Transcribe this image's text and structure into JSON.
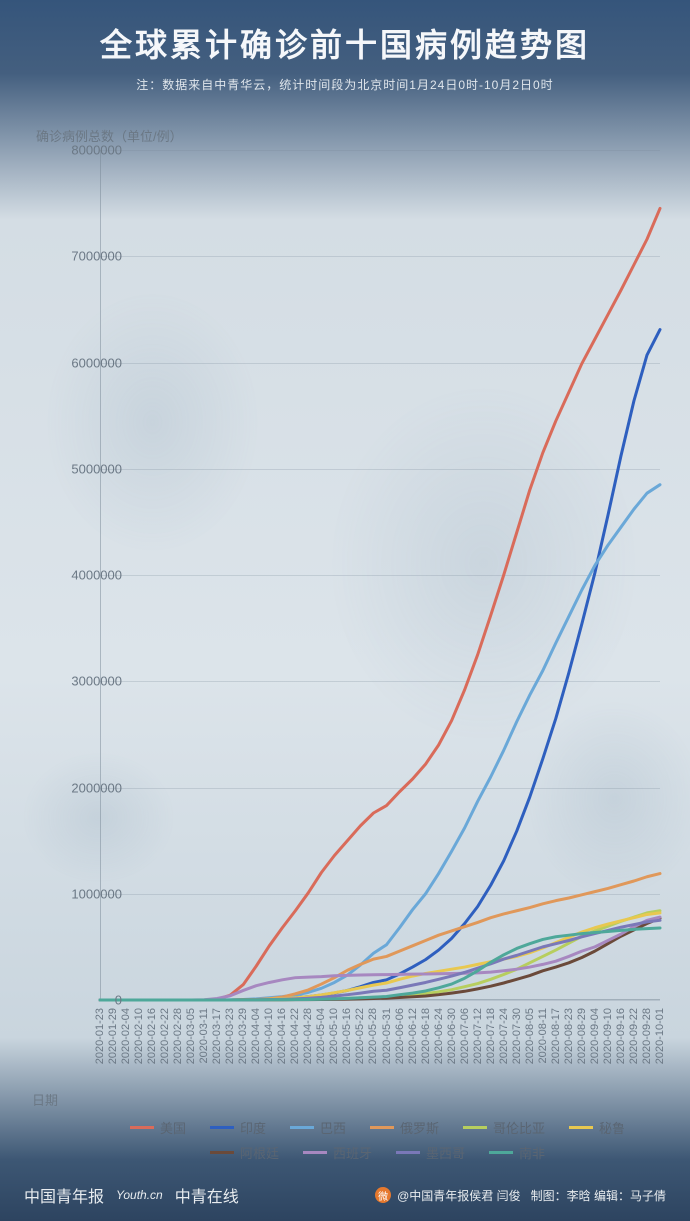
{
  "header": {
    "title": "全球累计确诊前十国病例趋势图",
    "subtitle": "注：数据来自中青华云，统计时间段为北京时间1月24日0时-10月2日0时"
  },
  "chart": {
    "type": "line",
    "ylabel": "确诊病例总数（单位/例）",
    "xlabel": "日期",
    "ylim": [
      0,
      8000000
    ],
    "ytick_step": 1000000,
    "yticks": [
      "0",
      "1000000",
      "2000000",
      "3000000",
      "4000000",
      "5000000",
      "6000000",
      "7000000",
      "8000000"
    ],
    "xticks": [
      "2020-01-23",
      "2020-01-29",
      "2020-02-04",
      "2020-02-10",
      "2020-02-16",
      "2020-02-22",
      "2020-02-28",
      "2020-03-05",
      "2020-03-11",
      "2020-03-17",
      "2020-03-23",
      "2020-03-29",
      "2020-04-04",
      "2020-04-10",
      "2020-04-16",
      "2020-04-22",
      "2020-04-28",
      "2020-05-04",
      "2020-05-10",
      "2020-05-16",
      "2020-05-22",
      "2020-05-28",
      "2020-05-31",
      "2020-06-06",
      "2020-06-12",
      "2020-06-18",
      "2020-06-24",
      "2020-06-30",
      "2020-07-06",
      "2020-07-12",
      "2020-07-18",
      "2020-07-24",
      "2020-07-30",
      "2020-08-05",
      "2020-08-11",
      "2020-08-17",
      "2020-08-23",
      "2020-08-29",
      "2020-09-04",
      "2020-09-10",
      "2020-09-16",
      "2020-09-22",
      "2020-09-28",
      "2020-10-01"
    ],
    "line_width": 3,
    "background_color": "#d9e1e8",
    "grid_color": "rgba(120,135,150,0.25)",
    "label_color": "#6b7885",
    "label_fontsize": 13,
    "series": [
      {
        "name": "美国",
        "color": "#d96b5a",
        "values": [
          0,
          0,
          0,
          0,
          0,
          0,
          0,
          20,
          100,
          6000,
          45000,
          145000,
          320000,
          510000,
          680000,
          840000,
          1010000,
          1200000,
          1360000,
          1500000,
          1640000,
          1760000,
          1830000,
          1960000,
          2080000,
          2220000,
          2400000,
          2630000,
          2920000,
          3250000,
          3620000,
          4000000,
          4400000,
          4800000,
          5150000,
          5450000,
          5720000,
          5990000,
          6220000,
          6450000,
          6680000,
          6920000,
          7160000,
          7450000
        ]
      },
      {
        "name": "印度",
        "color": "#2e5fbf",
        "values": [
          0,
          0,
          0,
          0,
          0,
          0,
          0,
          0,
          0,
          0,
          500,
          1000,
          3500,
          8000,
          14000,
          22000,
          32000,
          47000,
          66000,
          90000,
          125000,
          165000,
          190000,
          245000,
          310000,
          380000,
          470000,
          580000,
          720000,
          880000,
          1080000,
          1310000,
          1590000,
          1910000,
          2270000,
          2650000,
          3080000,
          3540000,
          4020000,
          4560000,
          5120000,
          5640000,
          6070000,
          6310000
        ]
      },
      {
        "name": "巴西",
        "color": "#6aa8d8",
        "values": [
          0,
          0,
          0,
          0,
          0,
          0,
          0,
          0,
          0,
          300,
          2000,
          4500,
          11000,
          21000,
          32000,
          47000,
          72000,
          110000,
          165000,
          235000,
          330000,
          440000,
          520000,
          680000,
          850000,
          1000000,
          1190000,
          1400000,
          1620000,
          1870000,
          2100000,
          2350000,
          2620000,
          2870000,
          3100000,
          3360000,
          3610000,
          3860000,
          4090000,
          4280000,
          4450000,
          4620000,
          4770000,
          4850000
        ]
      },
      {
        "name": "俄罗斯",
        "color": "#e0985a",
        "values": [
          0,
          0,
          0,
          0,
          0,
          0,
          0,
          0,
          0,
          100,
          500,
          1800,
          4700,
          12000,
          28000,
          58000,
          95000,
          150000,
          210000,
          280000,
          335000,
          385000,
          410000,
          460000,
          510000,
          560000,
          610000,
          650000,
          690000,
          730000,
          775000,
          810000,
          840000,
          870000,
          905000,
          935000,
          960000,
          990000,
          1020000,
          1050000,
          1085000,
          1120000,
          1160000,
          1190000
        ]
      },
      {
        "name": "哥伦比亚",
        "color": "#b7ce5e",
        "values": [
          0,
          0,
          0,
          0,
          0,
          0,
          0,
          0,
          0,
          0,
          200,
          700,
          1500,
          2800,
          3400,
          4500,
          5900,
          8000,
          11000,
          15000,
          20000,
          25000,
          28000,
          38000,
          48000,
          60000,
          77000,
          97000,
          125000,
          155000,
          195000,
          240000,
          290000,
          350000,
          410000,
          470000,
          535000,
          600000,
          650000,
          695000,
          740000,
          780000,
          820000,
          840000
        ]
      },
      {
        "name": "秘鲁",
        "color": "#e8c850",
        "values": [
          0,
          0,
          0,
          0,
          0,
          0,
          0,
          0,
          0,
          0,
          400,
          1000,
          2500,
          7000,
          13000,
          20000,
          32000,
          48000,
          68000,
          90000,
          115000,
          140000,
          160000,
          195000,
          225000,
          250000,
          270000,
          290000,
          310000,
          335000,
          360000,
          385000,
          410000,
          445000,
          490000,
          540000,
          590000,
          640000,
          680000,
          715000,
          745000,
          775000,
          805000,
          820000
        ]
      },
      {
        "name": "阿根廷",
        "color": "#6b4a3a",
        "values": [
          0,
          0,
          0,
          0,
          0,
          0,
          0,
          0,
          0,
          0,
          300,
          800,
          1500,
          2100,
          2800,
          3400,
          4100,
          5000,
          6000,
          8000,
          10000,
          14000,
          17000,
          23000,
          30000,
          38000,
          50000,
          65000,
          82000,
          105000,
          130000,
          160000,
          195000,
          230000,
          275000,
          310000,
          350000,
          400000,
          460000,
          530000,
          600000,
          660000,
          720000,
          770000
        ]
      },
      {
        "name": "西班牙",
        "color": "#a788c0",
        "values": [
          0,
          0,
          0,
          0,
          0,
          0,
          0,
          50,
          2300,
          14000,
          40000,
          90000,
          135000,
          165000,
          190000,
          210000,
          215000,
          220000,
          228000,
          232000,
          235000,
          238000,
          239000,
          241000,
          243000,
          245000,
          247000,
          249000,
          252000,
          255000,
          262000,
          275000,
          290000,
          310000,
          335000,
          365000,
          410000,
          460000,
          500000,
          560000,
          620000,
          690000,
          750000,
          780000
        ]
      },
      {
        "name": "墨西哥",
        "color": "#7a78b8",
        "values": [
          0,
          0,
          0,
          0,
          0,
          0,
          0,
          0,
          0,
          100,
          400,
          1000,
          2000,
          4000,
          7000,
          11000,
          17000,
          25000,
          36000,
          50000,
          65000,
          82000,
          92000,
          115000,
          140000,
          165000,
          195000,
          225000,
          260000,
          300000,
          340000,
          385000,
          420000,
          460000,
          500000,
          530000,
          560000,
          595000,
          625000,
          655000,
          685000,
          710000,
          735000,
          750000
        ]
      },
      {
        "name": "南非",
        "color": "#4ea89a",
        "values": [
          0,
          0,
          0,
          0,
          0,
          0,
          0,
          0,
          0,
          100,
          400,
          1300,
          1700,
          2200,
          2800,
          3800,
          5000,
          7500,
          11000,
          15000,
          21000,
          27000,
          33000,
          50000,
          65000,
          85000,
          115000,
          150000,
          205000,
          275000,
          355000,
          425000,
          485000,
          530000,
          570000,
          595000,
          610000,
          625000,
          635000,
          645000,
          655000,
          665000,
          672000,
          678000
        ]
      }
    ]
  },
  "legend": {
    "items": [
      {
        "key": "美国",
        "color": "#d96b5a"
      },
      {
        "key": "印度",
        "color": "#2e5fbf"
      },
      {
        "key": "巴西",
        "color": "#6aa8d8"
      },
      {
        "key": "俄罗斯",
        "color": "#e0985a"
      },
      {
        "key": "哥伦比亚",
        "color": "#b7ce5e"
      },
      {
        "key": "秘鲁",
        "color": "#e8c850"
      },
      {
        "key": "阿根廷",
        "color": "#6b4a3a"
      },
      {
        "key": "西班牙",
        "color": "#a788c0"
      },
      {
        "key": "墨西哥",
        "color": "#7a78b8"
      },
      {
        "key": "南非",
        "color": "#4ea89a"
      }
    ]
  },
  "footer": {
    "logos": [
      "中国青年报",
      "Youth.cn",
      "中青在线"
    ],
    "credit_handle": "@中国青年报侯君 闫俊",
    "credit_rest": "制图：李晗 编辑：马子倩"
  }
}
